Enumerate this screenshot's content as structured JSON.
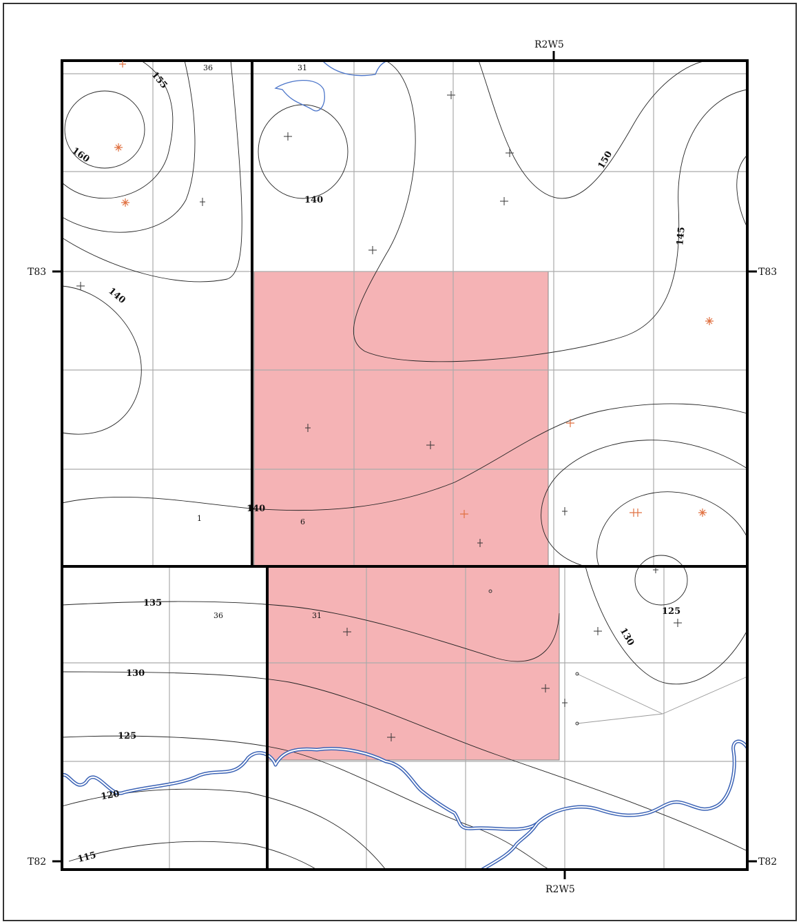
{
  "labels": {
    "range_top": "R2W5",
    "range_bottom": "R2W5",
    "twp_left_top": "T83",
    "twp_right_top": "T83",
    "twp_left_bottom": "T82",
    "twp_right_bottom": "T82"
  },
  "sections": {
    "s36_top": "36",
    "s31_top": "31",
    "s1": "1",
    "s6": "6",
    "s36_bot": "36",
    "s31_bot": "31"
  },
  "contours": {
    "c155": "155",
    "c160": "160",
    "c140_a": "140",
    "c150": "150",
    "c145": "145",
    "c140_b": "140",
    "c140_c": "140",
    "c135": "135",
    "c130_a": "130",
    "c125_a": "125",
    "c125_b": "125",
    "c130_b": "130",
    "c120": "120",
    "c115": "115"
  },
  "colors": {
    "highlight": "#f5b3b5",
    "contour": "#222222",
    "water": "#3a62b5",
    "grid": "#aaaaaa",
    "well_gas": "#e07040",
    "well_dry": "#333333"
  }
}
